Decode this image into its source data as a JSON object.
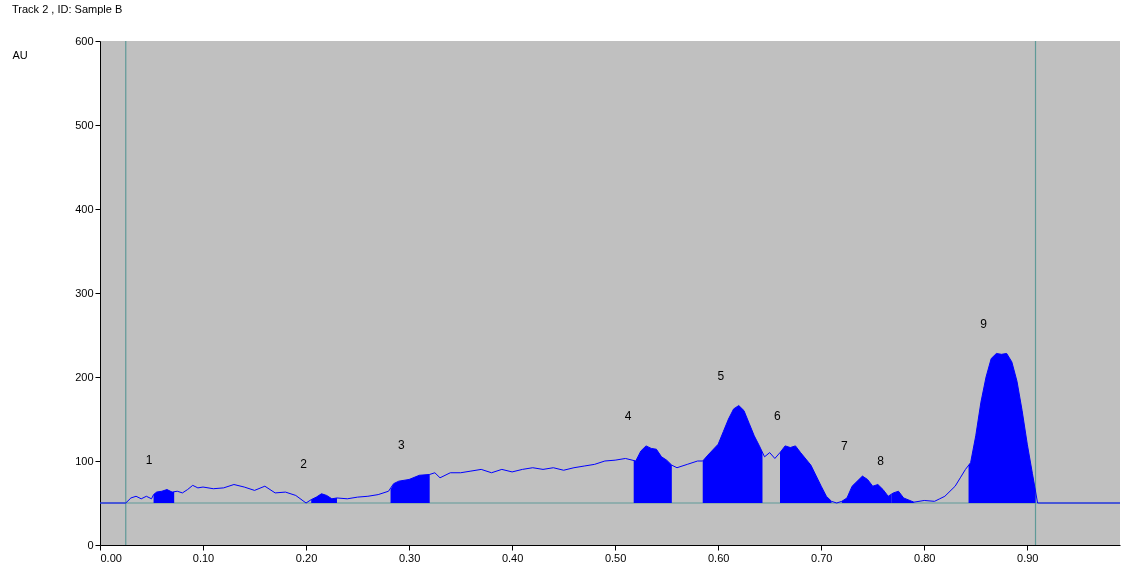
{
  "chart_data": {
    "type": "line",
    "title": "Track  2 , ID: Sample B",
    "ylabel": "AU",
    "xlim": [
      0,
      0.99
    ],
    "ylim": [
      0,
      600
    ],
    "xticks": [
      {
        "value": 0,
        "label": "0.00"
      },
      {
        "value": 0.1,
        "label": "0.10"
      },
      {
        "value": 0.2,
        "label": "0.20"
      },
      {
        "value": 0.3,
        "label": "0.30"
      },
      {
        "value": 0.4,
        "label": "0.40"
      },
      {
        "value": 0.5,
        "label": "0.50"
      },
      {
        "value": 0.6,
        "label": "0.60"
      },
      {
        "value": 0.7,
        "label": "0.70"
      },
      {
        "value": 0.8,
        "label": "0.80"
      },
      {
        "value": 0.9,
        "label": "0.90"
      }
    ],
    "yticks": [
      0,
      100,
      200,
      300,
      400,
      500,
      600
    ],
    "grid": false,
    "marker": "none",
    "line_style": "solid",
    "series": [
      {
        "color": "#0000ff",
        "x": [
          0,
          0.025,
          0.03,
          0.035,
          0.04,
          0.045,
          0.05,
          0.052,
          0.055,
          0.06,
          0.065,
          0.07,
          0.075,
          0.08,
          0.085,
          0.09,
          0.095,
          0.1,
          0.11,
          0.12,
          0.13,
          0.14,
          0.15,
          0.16,
          0.17,
          0.18,
          0.19,
          0.2,
          0.205,
          0.21,
          0.215,
          0.22,
          0.225,
          0.23,
          0.24,
          0.25,
          0.26,
          0.27,
          0.28,
          0.285,
          0.29,
          0.3,
          0.31,
          0.32,
          0.325,
          0.33,
          0.34,
          0.35,
          0.36,
          0.37,
          0.38,
          0.39,
          0.4,
          0.41,
          0.42,
          0.43,
          0.44,
          0.45,
          0.46,
          0.47,
          0.48,
          0.49,
          0.5,
          0.51,
          0.52,
          0.525,
          0.53,
          0.535,
          0.54,
          0.545,
          0.55,
          0.555,
          0.56,
          0.57,
          0.58,
          0.585,
          0.59,
          0.6,
          0.605,
          0.61,
          0.615,
          0.62,
          0.625,
          0.63,
          0.635,
          0.64,
          0.645,
          0.65,
          0.655,
          0.66,
          0.665,
          0.67,
          0.675,
          0.68,
          0.69,
          0.7,
          0.705,
          0.71,
          0.715,
          0.72,
          0.725,
          0.73,
          0.74,
          0.745,
          0.75,
          0.755,
          0.76,
          0.765,
          0.77,
          0.775,
          0.78,
          0.79,
          0.8,
          0.81,
          0.815,
          0.82,
          0.83,
          0.835,
          0.84,
          0.845,
          0.85,
          0.855,
          0.86,
          0.865,
          0.87,
          0.875,
          0.88,
          0.885,
          0.89,
          0.895,
          0.9,
          0.905,
          0.91,
          0.99
        ],
        "values": [
          50,
          50,
          56,
          58,
          55,
          58,
          55,
          60,
          63,
          64,
          66,
          63,
          64,
          62,
          66,
          71,
          68,
          69,
          67,
          68,
          72,
          69,
          65,
          70,
          62,
          63,
          59,
          50,
          54,
          57,
          61,
          59,
          55,
          56,
          55,
          57,
          58,
          60,
          64,
          73,
          76,
          78,
          83,
          84,
          86,
          80,
          86,
          86,
          88,
          90,
          86,
          90,
          87,
          90,
          92,
          90,
          92,
          89,
          92,
          94,
          96,
          100,
          101,
          103,
          100,
          112,
          118,
          115,
          114,
          105,
          101,
          95,
          92,
          96,
          100,
          100,
          107,
          120,
          135,
          150,
          162,
          166,
          160,
          145,
          130,
          118,
          105,
          110,
          103,
          110,
          118,
          116,
          118,
          110,
          95,
          70,
          58,
          52,
          50,
          52,
          56,
          70,
          82,
          78,
          70,
          72,
          66,
          58,
          62,
          64,
          56,
          51,
          53,
          52,
          55,
          58,
          70,
          80,
          90,
          98,
          130,
          170,
          200,
          222,
          228,
          227,
          228,
          218,
          195,
          160,
          120,
          85,
          50,
          50
        ]
      },
      {
        "type": "area",
        "color": "#0000ff",
        "x": [
          0.052,
          0.055,
          0.06,
          0.065,
          0.07,
          0.072
        ],
        "values": [
          60,
          63,
          64,
          66,
          63,
          63
        ]
      },
      {
        "type": "area",
        "color": "#0000ff",
        "x": [
          0.205,
          0.21,
          0.215,
          0.22,
          0.225,
          0.23
        ],
        "values": [
          54,
          57,
          61,
          59,
          55,
          56
        ]
      },
      {
        "type": "area",
        "color": "#0000ff",
        "x": [
          0.282,
          0.285,
          0.29,
          0.3,
          0.31,
          0.32
        ],
        "values": [
          66,
          73,
          76,
          78,
          83,
          84
        ]
      },
      {
        "type": "area",
        "color": "#0000ff",
        "x": [
          0.518,
          0.52,
          0.525,
          0.53,
          0.535,
          0.54,
          0.545,
          0.55,
          0.555
        ],
        "values": [
          101,
          100,
          112,
          118,
          115,
          114,
          105,
          101,
          95
        ]
      },
      {
        "type": "area",
        "color": "#0000ff",
        "x": [
          0.585,
          0.59,
          0.6,
          0.605,
          0.61,
          0.615,
          0.62,
          0.625,
          0.63,
          0.635,
          0.64,
          0.643
        ],
        "values": [
          100,
          107,
          120,
          135,
          150,
          162,
          166,
          160,
          145,
          130,
          118,
          110
        ]
      },
      {
        "type": "area",
        "color": "#0000ff",
        "x": [
          0.66,
          0.665,
          0.67,
          0.675,
          0.68,
          0.69,
          0.7,
          0.705,
          0.71
        ],
        "values": [
          110,
          118,
          116,
          118,
          110,
          95,
          70,
          58,
          52
        ]
      },
      {
        "type": "area",
        "color": "#0000ff",
        "x": [
          0.72,
          0.725,
          0.73,
          0.74,
          0.745,
          0.75,
          0.755,
          0.76,
          0.765,
          0.768
        ],
        "values": [
          52,
          56,
          70,
          82,
          78,
          70,
          72,
          66,
          58,
          60
        ]
      },
      {
        "type": "area",
        "color": "#0000ff",
        "x": [
          0.768,
          0.77,
          0.775,
          0.78,
          0.79
        ],
        "values": [
          60,
          62,
          64,
          56,
          51
        ]
      },
      {
        "type": "area",
        "color": "#0000ff",
        "x": [
          0.843,
          0.845,
          0.85,
          0.855,
          0.86,
          0.865,
          0.87,
          0.875,
          0.88,
          0.885,
          0.89,
          0.895,
          0.9,
          0.905,
          0.908
        ],
        "values": [
          95,
          98,
          130,
          170,
          200,
          222,
          228,
          227,
          228,
          218,
          195,
          160,
          120,
          85,
          65
        ]
      }
    ],
    "ref_lines": [
      {
        "axis": "x",
        "value": 0.025,
        "color": "#5f9a98"
      },
      {
        "axis": "x",
        "value": 0.908,
        "color": "#5f9a98"
      },
      {
        "axis": "y",
        "value": 50,
        "color": "#5f9a98"
      }
    ],
    "annotations": [
      {
        "text": "1",
        "x": 0.065,
        "y": 66
      },
      {
        "text": "2",
        "x": 0.215,
        "y": 61
      },
      {
        "text": "3",
        "x": 0.31,
        "y": 83
      },
      {
        "text": "4",
        "x": 0.53,
        "y": 118
      },
      {
        "text": "5",
        "x": 0.62,
        "y": 166
      },
      {
        "text": "6",
        "x": 0.675,
        "y": 118
      },
      {
        "text": "7",
        "x": 0.74,
        "y": 82
      },
      {
        "text": "8",
        "x": 0.775,
        "y": 64
      },
      {
        "text": "9",
        "x": 0.875,
        "y": 227
      }
    ]
  }
}
